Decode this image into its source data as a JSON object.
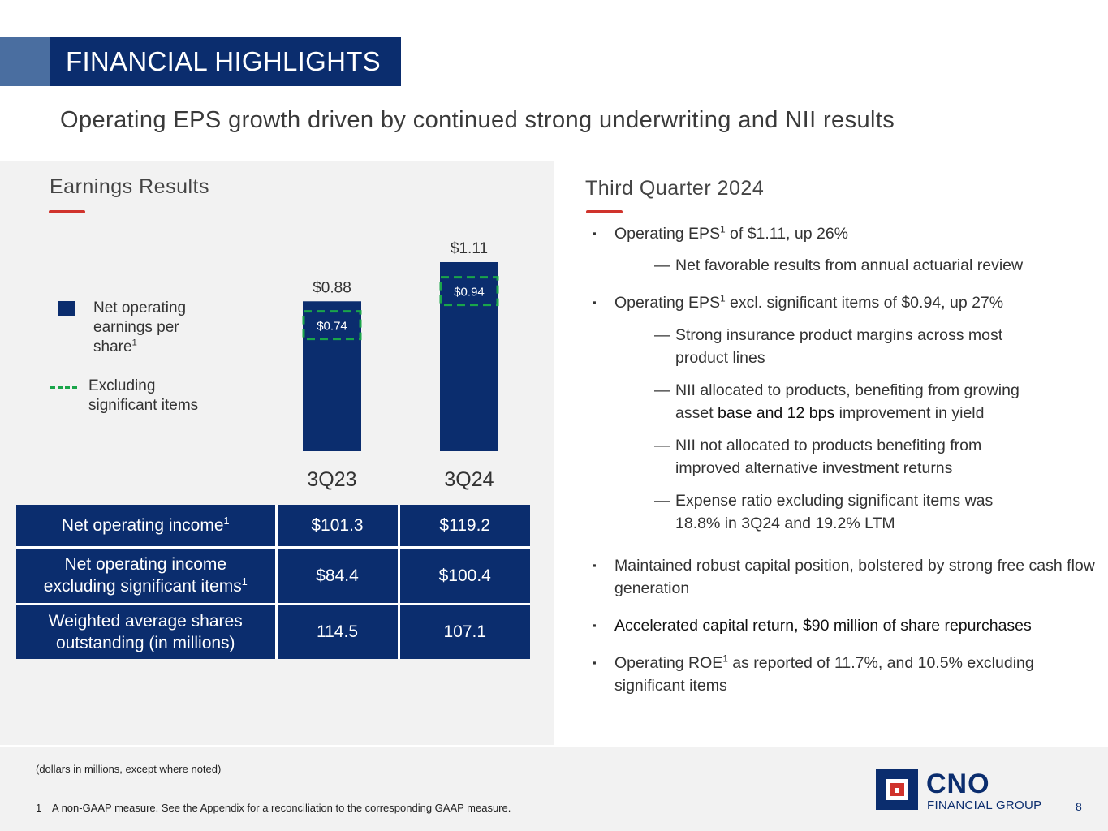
{
  "header": {
    "title": "FINANCIAL HIGHLIGHTS",
    "subtitle": "Operating EPS growth driven by continued strong underwriting and NII results"
  },
  "left": {
    "section_title": "Earnings Results",
    "legend": {
      "series_label": "Net operating earnings per share",
      "series_sup": "1",
      "dashed_label": "Excluding significant items"
    }
  },
  "chart_data": {
    "type": "bar",
    "categories": [
      "3Q23",
      "3Q24"
    ],
    "series": [
      {
        "name": "Net operating earnings per share",
        "values": [
          0.88,
          1.11
        ],
        "labels": [
          "$0.88",
          "$1.11"
        ]
      },
      {
        "name": "Excluding significant items",
        "values": [
          0.74,
          0.94
        ],
        "labels": [
          "$0.74",
          "$0.94"
        ]
      }
    ],
    "ylim": [
      0,
      1.11
    ],
    "title": "",
    "xlabel": "",
    "ylabel": ""
  },
  "table": {
    "rows": [
      {
        "label": "Net operating income",
        "sup": "1",
        "v3q23": "$101.3",
        "v3q24": "$119.2"
      },
      {
        "label": "Net operating income excluding significant items",
        "sup": "1",
        "v3q23": "$84.4",
        "v3q24": "$100.4"
      },
      {
        "label": "Weighted average shares outstanding (in millions)",
        "sup": "",
        "v3q23": "114.5",
        "v3q24": "107.1"
      }
    ]
  },
  "right": {
    "section_title": "Third Quarter 2024",
    "bullet_marker": "▪",
    "dash_marker": "—",
    "b1": {
      "pre": "Operating EPS",
      "sup": "1",
      "post": " of $1.11, up 26%"
    },
    "b1_sub1": "Net favorable results from annual actuarial review",
    "b2": {
      "pre": "Operating EPS",
      "sup": "1",
      "post": " excl. significant items of $0.94, up 27%"
    },
    "b2_sub1": "Strong insurance product margins across most product lines",
    "b2_sub2": {
      "pre": "NII allocated to products, benefiting from growing asset ",
      "dark": "base and 12 bps",
      "post": " improvement in yield"
    },
    "b2_sub3": "NII not allocated to products benefiting from improved alternative investment returns",
    "b2_sub4": "Expense ratio excluding significant items was 18.8% in 3Q24 and 19.2% LTM",
    "b3": "Maintained robust capital position, bolstered by strong free cash flow generation",
    "b4": "Accelerated capital return, $90 million of share repurchases",
    "b5": {
      "pre": "Operating ROE",
      "sup": "1",
      "post": " as reported of 11.7%, and 10.5% excluding significant items"
    }
  },
  "footer": {
    "note": "(dollars in millions, except where noted)",
    "footnote_num": "1",
    "footnote_text": "A non-GAAP measure. See the Appendix for a reconciliation to the corresponding GAAP measure.",
    "logo_name": "CNO",
    "logo_sub": "FINANCIAL GROUP",
    "page_number": "8",
    "colors": {
      "navy": "#0b2d6e",
      "red": "#d0332c",
      "green": "#1aa54a"
    }
  }
}
